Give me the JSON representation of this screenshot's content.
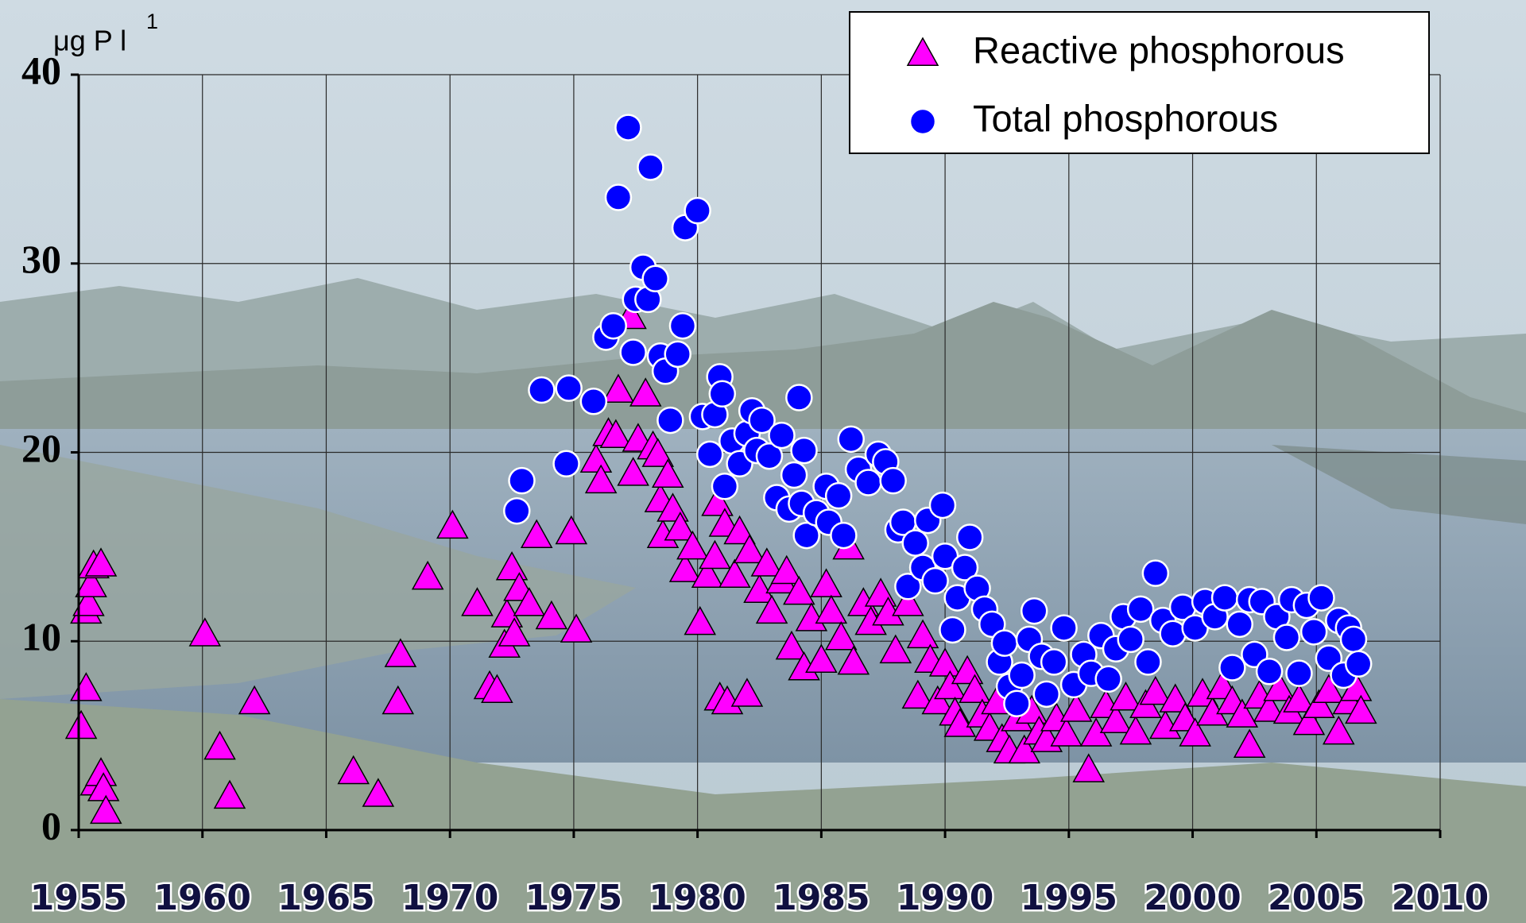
{
  "chart_data": {
    "type": "scatter",
    "ylabel": "μg P l",
    "ylabel_superscript": "1",
    "xlim": [
      1955,
      2010
    ],
    "xticks": [
      1955,
      1960,
      1965,
      1970,
      1975,
      1980,
      1985,
      1990,
      1995,
      2000,
      2005,
      2010
    ],
    "ylim": [
      0,
      40
    ],
    "yticks": [
      0,
      10,
      20,
      30,
      40
    ],
    "grid": true,
    "legend": "top-right",
    "series": [
      {
        "name": "Reactive phosphorous",
        "color": "#ff00ff",
        "marker": "triangle",
        "x": [
          1955.1,
          1955.3,
          1955.3,
          1955.4,
          1955.5,
          1955.6,
          1955.9,
          1955.7,
          1955.9,
          1956.0,
          1956.1,
          1960.1,
          1960.7,
          1961.1,
          1962.1,
          1966.1,
          1967.1,
          1967.9,
          1968.0,
          1969.1,
          1970.1,
          1971.1,
          1971.6,
          1971.9,
          1972.2,
          1972.3,
          1972.5,
          1972.6,
          1972.8,
          1973.2,
          1973.5,
          1974.1,
          1974.9,
          1975.1,
          1975.9,
          1976.1,
          1976.4,
          1976.7,
          1976.8,
          1977.3,
          1977.4,
          1977.6,
          1977.9,
          1978.2,
          1978.4,
          1978.5,
          1978.6,
          1978.8,
          1979.0,
          1979.3,
          1979.5,
          1979.8,
          1980.1,
          1980.4,
          1980.7,
          1980.8,
          1980.9,
          1981.1,
          1981.2,
          1981.5,
          1981.7,
          1982.0,
          1982.1,
          1982.5,
          1982.8,
          1983.0,
          1983.4,
          1983.6,
          1983.8,
          1984.1,
          1984.3,
          1984.6,
          1985.0,
          1985.2,
          1985.4,
          1985.8,
          1986.1,
          1986.3,
          1986.7,
          1987.0,
          1987.4,
          1987.7,
          1988.0,
          1988.5,
          1988.9,
          1989.1,
          1989.4,
          1989.7,
          1990.0,
          1990.2,
          1990.4,
          1990.6,
          1990.9,
          1991.2,
          1991.5,
          1991.8,
          1992.1,
          1992.3,
          1992.6,
          1992.9,
          1993.2,
          1993.5,
          1993.8,
          1994.1,
          1994.5,
          1994.9,
          1995.3,
          1995.8,
          1996.1,
          1996.5,
          1996.9,
          1997.3,
          1997.7,
          1998.1,
          1998.5,
          1998.9,
          1999.3,
          1999.7,
          2000.1,
          2000.4,
          2000.8,
          2001.2,
          2001.6,
          2002.0,
          2002.3,
          2002.7,
          2003.1,
          2003.5,
          2003.9,
          2004.3,
          2004.7,
          2005.1,
          2005.5,
          2005.9,
          2006.3,
          2006.6,
          2006.8
        ],
        "values": [
          5.5,
          7.5,
          11.6,
          12,
          13,
          14,
          14.1,
          2.5,
          3,
          2.2,
          1,
          10.4,
          4.4,
          1.8,
          6.8,
          3.1,
          1.9,
          6.8,
          9.3,
          13.4,
          16.1,
          12,
          7.6,
          7.4,
          9.8,
          11.4,
          13.9,
          10.4,
          12.8,
          12,
          15.6,
          11.3,
          15.8,
          10.6,
          19.6,
          18.5,
          21,
          20.9,
          23.3,
          27.2,
          18.9,
          20.7,
          23.1,
          20.3,
          19.9,
          17.5,
          15.6,
          18.8,
          17,
          16,
          13.8,
          15,
          11,
          13.5,
          14.5,
          17.3,
          7,
          16.2,
          6.8,
          13.5,
          15.8,
          7.2,
          14.8,
          12.7,
          14.1,
          11.6,
          13.2,
          13.7,
          9.7,
          12.6,
          8.6,
          11.2,
          9,
          13,
          11.6,
          10.2,
          15,
          8.9,
          12,
          11,
          12.5,
          11.5,
          9.5,
          12,
          7.1,
          10.3,
          9,
          6.8,
          8.8,
          7.6,
          6.2,
          5.6,
          8.4,
          7.4,
          6.1,
          5.4,
          6.8,
          4.8,
          4.2,
          5.9,
          4.2,
          6.3,
          5.2,
          4.8,
          5.9,
          5.1,
          6.4,
          3.2,
          5.1,
          6.6,
          5.8,
          7,
          5.2,
          6.6,
          7.3,
          5.5,
          6.9,
          5.9,
          5.1,
          7.2,
          6.2,
          7.6,
          6.8,
          6.1,
          4.5,
          7.1,
          6.4,
          7.5,
          6.3,
          6.9,
          5.7,
          6.6,
          7.4,
          5.2,
          6.8,
          7.5,
          6.3
        ]
      },
      {
        "name": "Total phosphorous",
        "color": "#0000ff",
        "marker": "circle",
        "x": [
          1972.7,
          1972.9,
          1973.7,
          1974.8,
          1974.7,
          1975.8,
          1976.3,
          1976.6,
          1976.8,
          1977.2,
          1977.4,
          1977.5,
          1977.8,
          1978.0,
          1978.1,
          1978.3,
          1978.5,
          1978.7,
          1978.9,
          1979.2,
          1979.4,
          1979.5,
          1980.0,
          1980.2,
          1980.5,
          1980.7,
          1980.9,
          1981.0,
          1981.1,
          1981.4,
          1981.7,
          1982.0,
          1982.2,
          1982.4,
          1982.6,
          1982.9,
          1983.2,
          1983.4,
          1983.7,
          1983.9,
          1984.1,
          1984.3,
          1984.2,
          1984.4,
          1984.8,
          1985.2,
          1985.3,
          1985.7,
          1985.9,
          1986.2,
          1986.5,
          1986.9,
          1987.3,
          1987.6,
          1987.9,
          1988.1,
          1988.3,
          1988.5,
          1988.8,
          1989.1,
          1989.3,
          1989.6,
          1989.9,
          1990.0,
          1990.3,
          1990.5,
          1990.8,
          1991.0,
          1991.3,
          1991.6,
          1991.9,
          1992.2,
          1992.4,
          1992.6,
          1992.9,
          1993.1,
          1993.4,
          1993.6,
          1993.9,
          1994.1,
          1994.4,
          1994.8,
          1995.2,
          1995.6,
          1995.9,
          1996.3,
          1996.6,
          1996.9,
          1997.2,
          1997.5,
          1997.9,
          1998.2,
          1998.5,
          1998.8,
          1999.2,
          1999.6,
          2000.1,
          2000.5,
          2000.9,
          2001.3,
          2001.6,
          2001.9,
          2002.3,
          2002.5,
          2002.8,
          2003.1,
          2003.4,
          2003.8,
          2004.0,
          2004.3,
          2004.6,
          2004.9,
          2005.2,
          2005.5,
          2005.9,
          2006.1,
          2006.3,
          2006.5,
          2006.7
        ],
        "values": [
          16.9,
          18.5,
          23.3,
          23.4,
          19.4,
          22.7,
          26.1,
          26.7,
          33.5,
          37.2,
          25.3,
          28.1,
          29.8,
          28.1,
          35.1,
          29.2,
          25.1,
          24.3,
          21.7,
          25.2,
          26.7,
          31.9,
          32.8,
          21.9,
          19.9,
          22,
          24,
          23.1,
          18.2,
          20.6,
          19.4,
          21,
          22.2,
          20.1,
          21.7,
          19.8,
          17.6,
          20.9,
          17,
          18.8,
          22.9,
          20.1,
          17.3,
          15.6,
          16.8,
          18.2,
          16.3,
          17.7,
          15.6,
          20.7,
          19.1,
          18.4,
          19.9,
          19.5,
          18.5,
          15.9,
          16.3,
          12.9,
          15.2,
          13.9,
          16.4,
          13.2,
          17.2,
          14.5,
          10.6,
          12.3,
          13.9,
          15.5,
          12.8,
          11.7,
          10.9,
          8.9,
          9.9,
          7.6,
          6.7,
          8.2,
          10.1,
          11.6,
          9.2,
          7.2,
          8.9,
          10.7,
          7.7,
          9.3,
          8.3,
          10.3,
          8,
          9.6,
          11.3,
          10.1,
          11.7,
          8.9,
          13.6,
          11.1,
          10.4,
          11.8,
          10.7,
          12.1,
          11.3,
          12.3,
          8.6,
          10.9,
          12.2,
          9.3,
          12.1,
          8.4,
          11.3,
          10.2,
          12.2,
          8.3,
          11.9,
          10.5,
          12.3,
          9.1,
          11.1,
          8.2,
          10.7,
          10.1,
          8.8
        ]
      }
    ]
  }
}
